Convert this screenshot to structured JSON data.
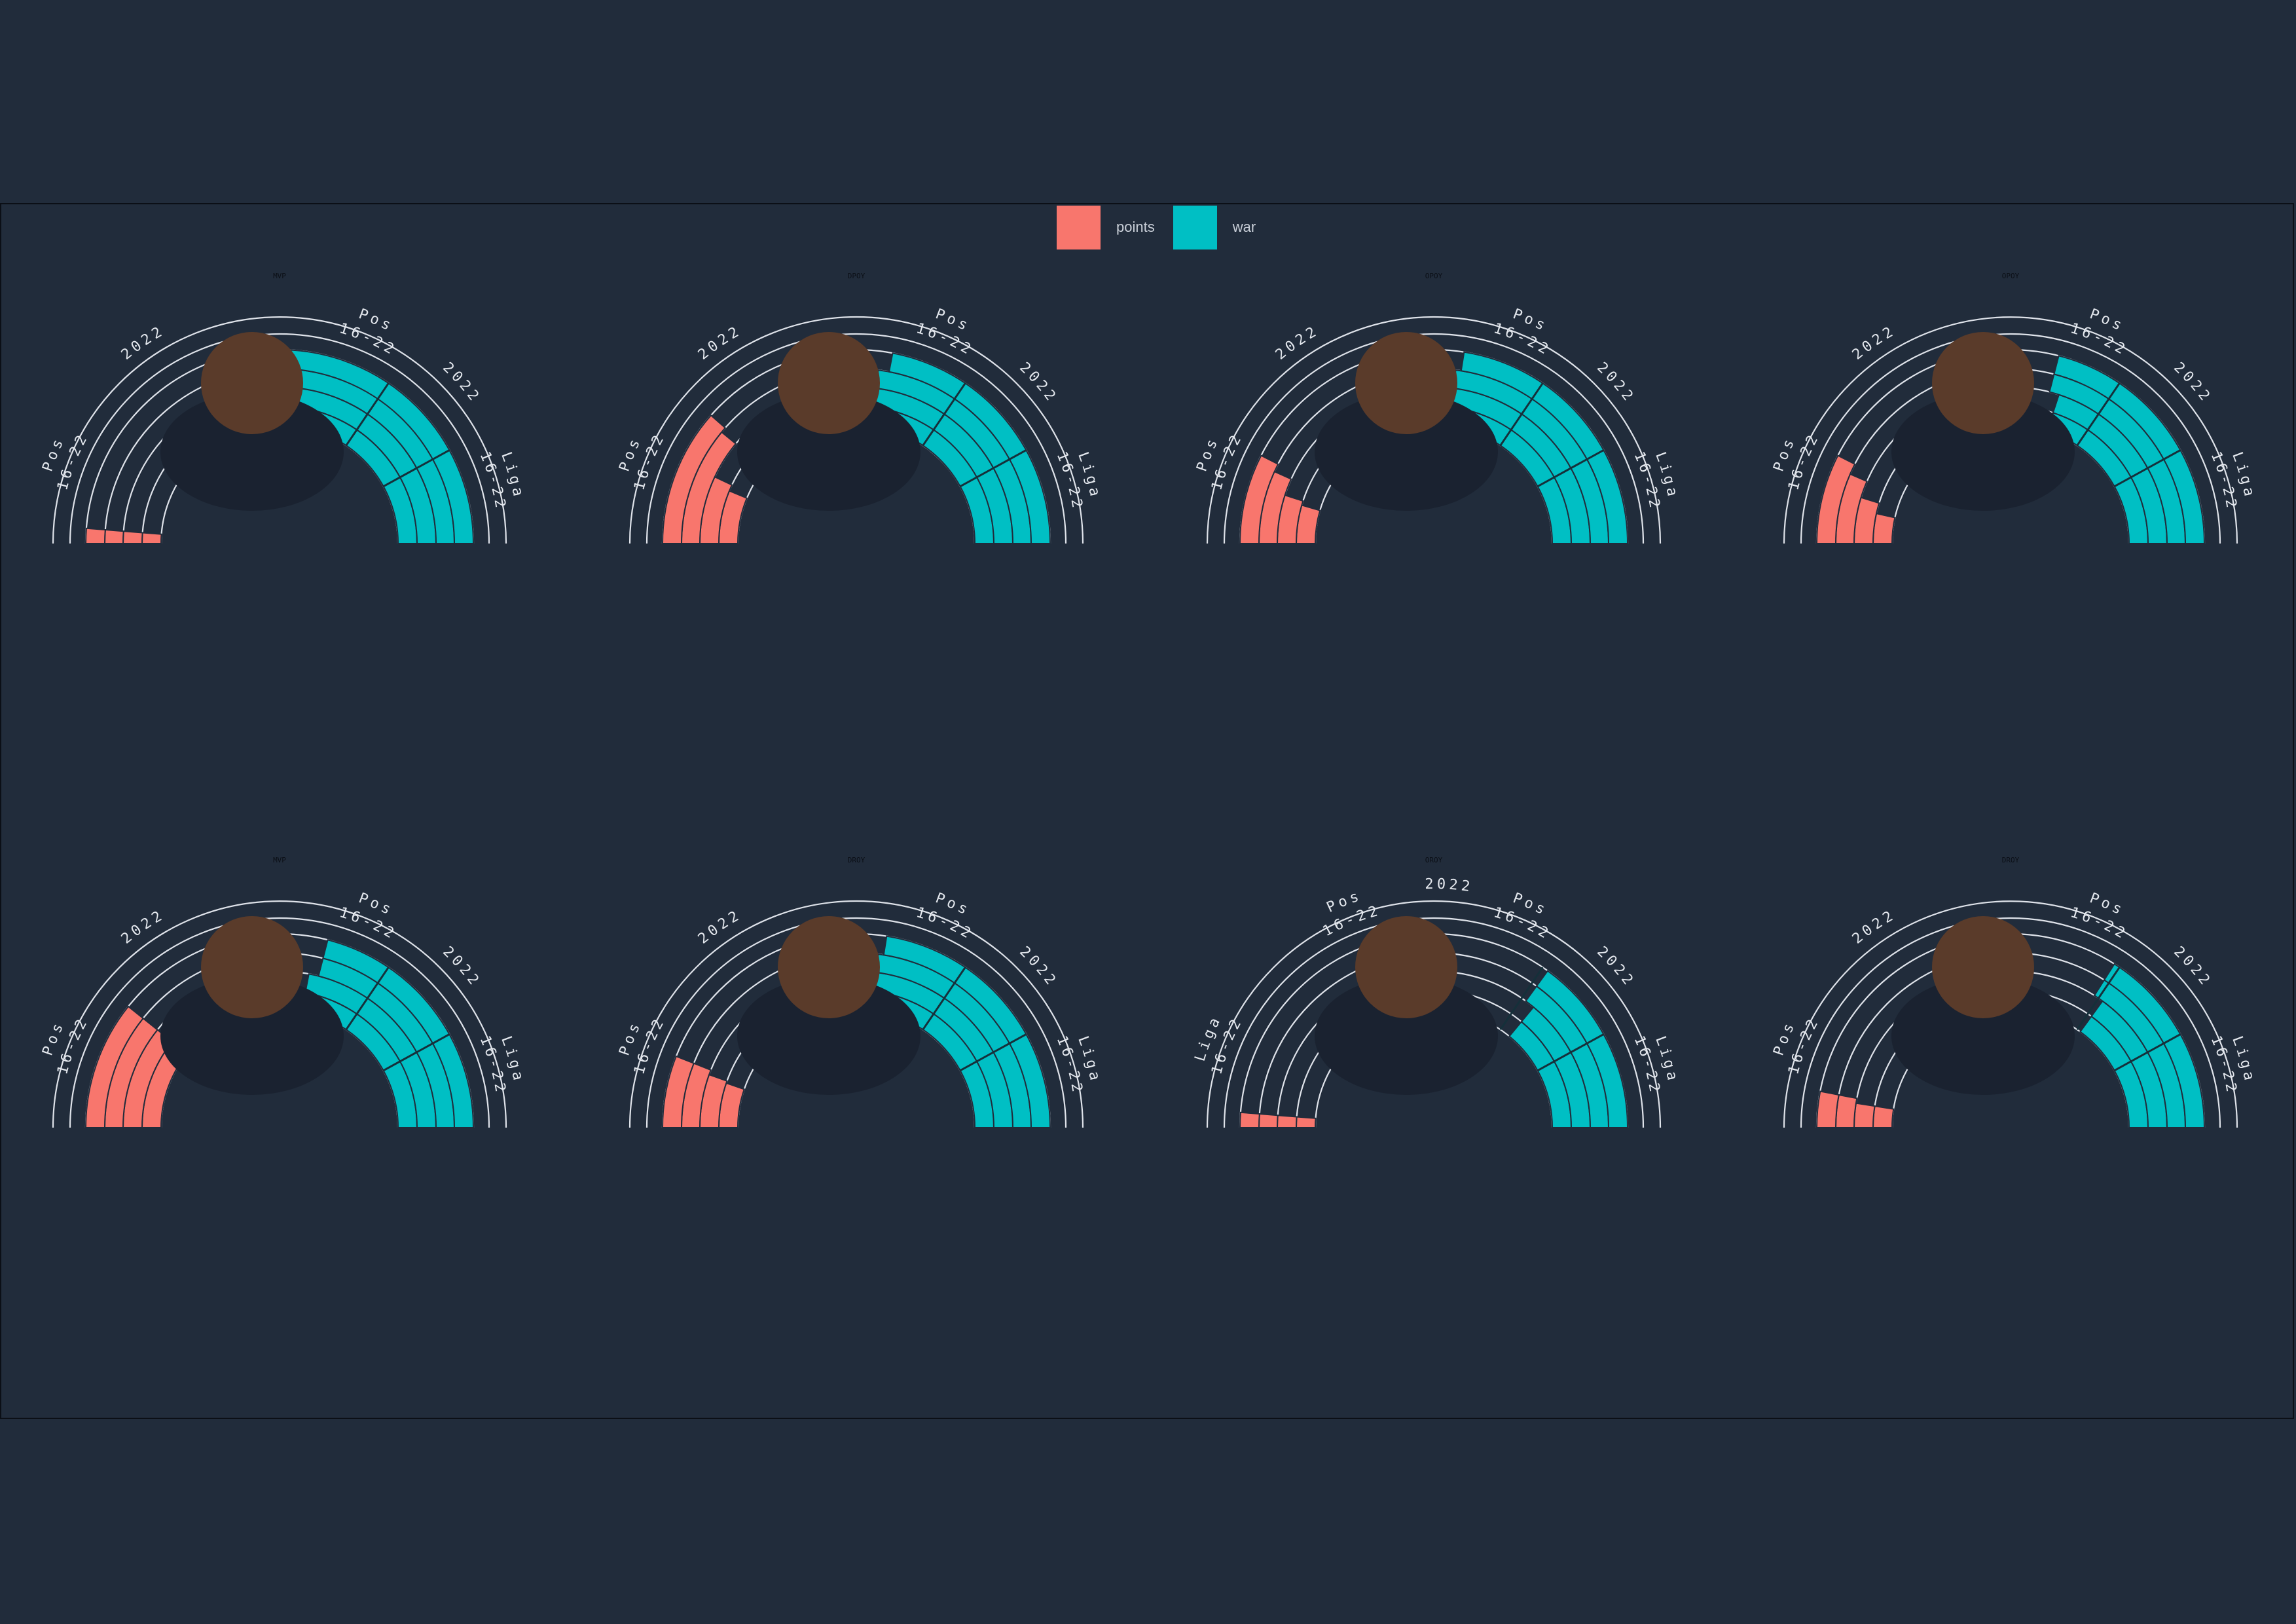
{
  "colors": {
    "background": "#212c3b",
    "points": "#f8766d",
    "war": "#00bfc4",
    "ring": "#dfe3ea",
    "label": "#e4e8ee",
    "award": "#0b0f16"
  },
  "legend": {
    "points_label": "points",
    "war_label": "war"
  },
  "chart_data": [
    {
      "type": "radial_bar",
      "award": "MVP",
      "photo": "player-headshot",
      "ring_labels_left": [
        "Pos 16-22",
        "2022"
      ],
      "ring_labels_right": [
        "Pos 16-22",
        "2022",
        "Liga 16-22"
      ],
      "series": [
        {
          "name": "points",
          "values": [
            0.05,
            0.05,
            0.05,
            0.05
          ]
        },
        {
          "name": "war",
          "values": [
            0.5,
            0.5,
            0.5,
            0.5
          ]
        }
      ]
    },
    {
      "type": "radial_bar",
      "award": "DPOY",
      "photo": "player-headshot",
      "ring_labels_left": [
        "Pos 16-22",
        "2022"
      ],
      "ring_labels_right": [
        "Pos 16-22",
        "2022",
        "Liga 16-22"
      ],
      "series": [
        {
          "name": "points",
          "values": [
            0.25,
            0.28,
            0.44,
            0.46
          ]
        },
        {
          "name": "war",
          "values": [
            0.46,
            0.46,
            0.46,
            0.44
          ]
        }
      ]
    },
    {
      "type": "radial_bar",
      "award": "OPOY",
      "photo": "player-headshot",
      "ring_labels_left": [
        "Pos 16-22",
        "2022"
      ],
      "ring_labels_right": [
        "Pos 16-22",
        "2022",
        "Liga 16-22"
      ],
      "series": [
        {
          "name": "points",
          "values": [
            0.18,
            0.2,
            0.27,
            0.3
          ]
        },
        {
          "name": "war",
          "values": [
            0.46,
            0.46,
            0.46,
            0.45
          ]
        }
      ]
    },
    {
      "type": "radial_bar",
      "award": "OPOY",
      "photo": "player-headshot",
      "ring_labels_left": [
        "Pos 16-22",
        "2022"
      ],
      "ring_labels_right": [
        "Pos 16-22",
        "2022",
        "Liga 16-22"
      ],
      "series": [
        {
          "name": "points",
          "values": [
            0.14,
            0.19,
            0.26,
            0.3
          ]
        },
        {
          "name": "war",
          "values": [
            0.4,
            0.4,
            0.42,
            0.42
          ]
        }
      ]
    },
    {
      "type": "radial_bar",
      "award": "MVP",
      "photo": "player-headshot",
      "ring_labels_left": [
        "Pos 16-22",
        "2022"
      ],
      "ring_labels_right": [
        "Pos 16-22",
        "2022",
        "Liga 16-22"
      ],
      "series": [
        {
          "name": "points",
          "values": [
            0.38,
            0.43,
            0.43,
            0.43
          ]
        },
        {
          "name": "war",
          "values": [
            0.44,
            0.44,
            0.42,
            0.42
          ]
        }
      ]
    },
    {
      "type": "radial_bar",
      "award": "DROY",
      "photo": "player-headshot",
      "ring_labels_left": [
        "Pos 16-22",
        "2022"
      ],
      "ring_labels_right": [
        "Pos 16-22",
        "2022",
        "Liga 16-22"
      ],
      "series": [
        {
          "name": "points",
          "values": [
            0.21,
            0.22,
            0.24,
            0.24
          ]
        },
        {
          "name": "war",
          "values": [
            0.46,
            0.46,
            0.46,
            0.45
          ]
        }
      ]
    },
    {
      "type": "radial_bar",
      "award": "OROY",
      "photo": "player-headshot",
      "ring_labels_left": [
        "Liga 16-22",
        "Pos 16-22",
        "2022"
      ],
      "ring_labels_right": [
        "Pos 16-22",
        "2022",
        "Liga 16-22"
      ],
      "series": [
        {
          "name": "points",
          "values": [
            0.05,
            0.05,
            0.05,
            0.05
          ]
        },
        {
          "name": "war",
          "values": [
            0.28,
            0.28,
            0.3,
            0.3
          ]
        }
      ]
    },
    {
      "type": "radial_bar",
      "award": "DROY",
      "photo": "player-headshot",
      "ring_labels_left": [
        "Pos 16-22",
        "2022"
      ],
      "ring_labels_right": [
        "Pos 16-22",
        "2022",
        "Liga 16-22"
      ],
      "series": [
        {
          "name": "points",
          "values": [
            0.1,
            0.1,
            0.12,
            0.12
          ]
        },
        {
          "name": "war",
          "values": [
            0.3,
            0.3,
            0.32,
            0.32
          ]
        }
      ]
    }
  ]
}
